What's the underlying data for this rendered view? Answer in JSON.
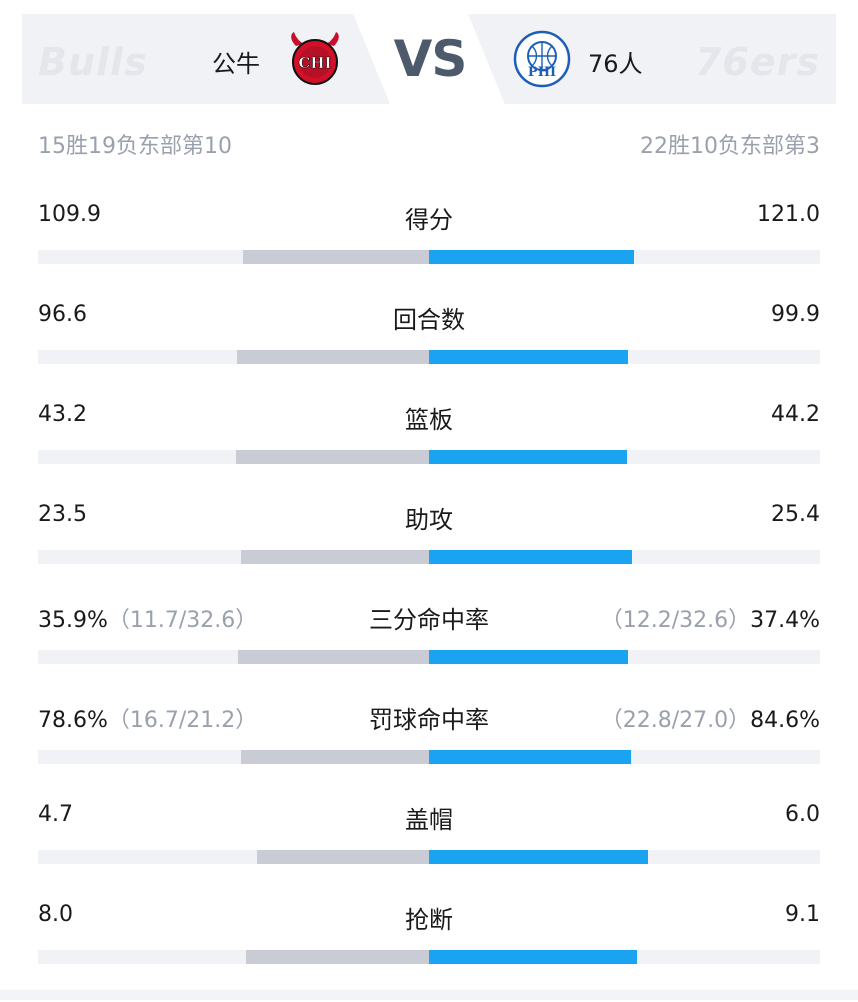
{
  "header": {
    "left_watermark": "Bulls",
    "right_watermark": "76ers",
    "left_team": "公牛",
    "right_team": "76人",
    "vs": "VS",
    "left_logo_text": "CHI",
    "right_logo_text": "PHI",
    "left_record": "15胜19负东部第10",
    "right_record": "22胜10负东部第3"
  },
  "colors": {
    "left_bar": "#c9ccd4",
    "right_bar": "#1aa3f0",
    "track": "#f1f2f6"
  },
  "stats": [
    {
      "label": "得分",
      "left": "109.9",
      "right": "121.0",
      "left_sub": "",
      "right_sub": "",
      "left_value": 109.9,
      "right_value": 121.0
    },
    {
      "label": "回合数",
      "left": "96.6",
      "right": "99.9",
      "left_sub": "",
      "right_sub": "",
      "left_value": 96.6,
      "right_value": 99.9
    },
    {
      "label": "篮板",
      "left": "43.2",
      "right": "44.2",
      "left_sub": "",
      "right_sub": "",
      "left_value": 43.2,
      "right_value": 44.2
    },
    {
      "label": "助攻",
      "left": "23.5",
      "right": "25.4",
      "left_sub": "",
      "right_sub": "",
      "left_value": 23.5,
      "right_value": 25.4
    },
    {
      "label": "三分命中率",
      "left": "35.9%",
      "right": "37.4%",
      "left_sub": "（11.7/32.6）",
      "right_sub": "（12.2/32.6）",
      "left_value": 35.9,
      "right_value": 37.4
    },
    {
      "label": "罚球命中率",
      "left": "78.6%",
      "right": "84.6%",
      "left_sub": "（16.7/21.2）",
      "right_sub": "（22.8/27.0）",
      "left_value": 78.6,
      "right_value": 84.6
    },
    {
      "label": "盖帽",
      "left": "4.7",
      "right": "6.0",
      "left_sub": "",
      "right_sub": "",
      "left_value": 4.7,
      "right_value": 6.0
    },
    {
      "label": "抢断",
      "left": "8.0",
      "right": "9.1",
      "left_sub": "",
      "right_sub": "",
      "left_value": 8.0,
      "right_value": 9.1
    }
  ]
}
